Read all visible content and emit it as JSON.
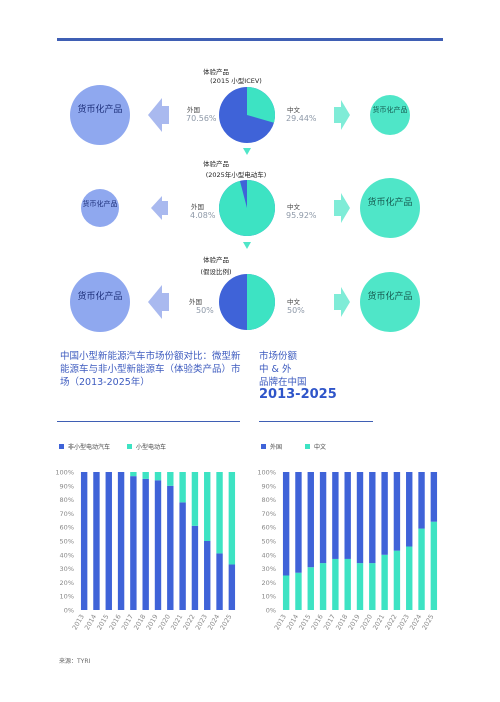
{
  "colors": {
    "blue": "#3f63d8",
    "teal": "#3de3c3",
    "light_blue": "#8fa8ef",
    "arrow_blue": "#a9b9ef",
    "light_teal": "#4fe6c8",
    "arrow_teal": "#7fecd7",
    "rule": "#3f5fb4"
  },
  "rows": [
    {
      "title": "体验产品",
      "subtitle": "(2015 小型ICEV)",
      "foreign_label": "外国",
      "foreign_pct": "70.56%",
      "foreign_value": 70.56,
      "china_label": "中文",
      "china_pct": "29.44%",
      "china_value": 29.44,
      "left_bubble": "货币化产品",
      "right_bubble": "货币化产品"
    },
    {
      "title": "体验产品",
      "subtitle": "(2025年小型电动车)",
      "foreign_label": "外国",
      "foreign_pct": "4.08%",
      "foreign_value": 4.08,
      "china_label": "中文",
      "china_pct": "95.92%",
      "china_value": 95.92,
      "left_bubble": "货币化产品",
      "right_bubble": "货币化产品"
    },
    {
      "title": "体验产品",
      "subtitle": "(假设比例)",
      "foreign_label": "外国",
      "foreign_pct": "50%",
      "foreign_value": 50,
      "china_label": "中文",
      "china_pct": "50%",
      "china_value": 50,
      "left_bubble": "货币化产品",
      "right_bubble": "货币化产品"
    }
  ],
  "caption": "中国小型新能源汽车市场份额对比：微型新能源车与非小型新能源车（体验类产品）市场（2013-2025年）",
  "right_title": {
    "line1": "市场份额",
    "line2": "中 & 外",
    "line3": "品牌在中国",
    "line4": "2013-2025"
  },
  "source": "来源：TYRI",
  "chart_data": [
    {
      "type": "bar",
      "stacked": true,
      "categories": [
        "2013",
        "2014",
        "2015",
        "2016",
        "2017",
        "2018",
        "2019",
        "2020",
        "2021",
        "2022",
        "2023",
        "2024",
        "2025"
      ],
      "series": [
        {
          "name": "非小型电动汽车",
          "values": [
            100,
            100,
            100,
            100,
            97,
            95,
            94,
            90,
            78,
            61,
            50,
            41,
            33
          ]
        },
        {
          "name": "小型电动车",
          "values": [
            0,
            0,
            0,
            0,
            3,
            5,
            6,
            10,
            22,
            39,
            50,
            59,
            67
          ]
        }
      ],
      "yticks": [
        "0%",
        "10%",
        "20%",
        "30%",
        "40%",
        "50%",
        "60%",
        "70%",
        "80%",
        "90%",
        "100%"
      ],
      "ylim": [
        0,
        100
      ],
      "legend": "top-left"
    },
    {
      "type": "bar",
      "stacked": true,
      "categories": [
        "2013",
        "2014",
        "2015",
        "2016",
        "2017",
        "2018",
        "2019",
        "2020",
        "2021",
        "2022",
        "2023",
        "2024",
        "2025"
      ],
      "series": [
        {
          "name": "外国",
          "values": [
            75,
            73,
            69,
            66,
            63,
            63,
            66,
            66,
            60,
            57,
            54,
            41,
            36
          ]
        },
        {
          "name": "中文",
          "values": [
            25,
            27,
            31,
            34,
            37,
            37,
            34,
            34,
            40,
            43,
            46,
            59,
            64
          ]
        }
      ],
      "yticks": [
        "0%",
        "10%",
        "20%",
        "30%",
        "40%",
        "50%",
        "60%",
        "70%",
        "80%",
        "90%",
        "100%"
      ],
      "ylim": [
        0,
        100
      ],
      "legend": "top-left"
    }
  ]
}
